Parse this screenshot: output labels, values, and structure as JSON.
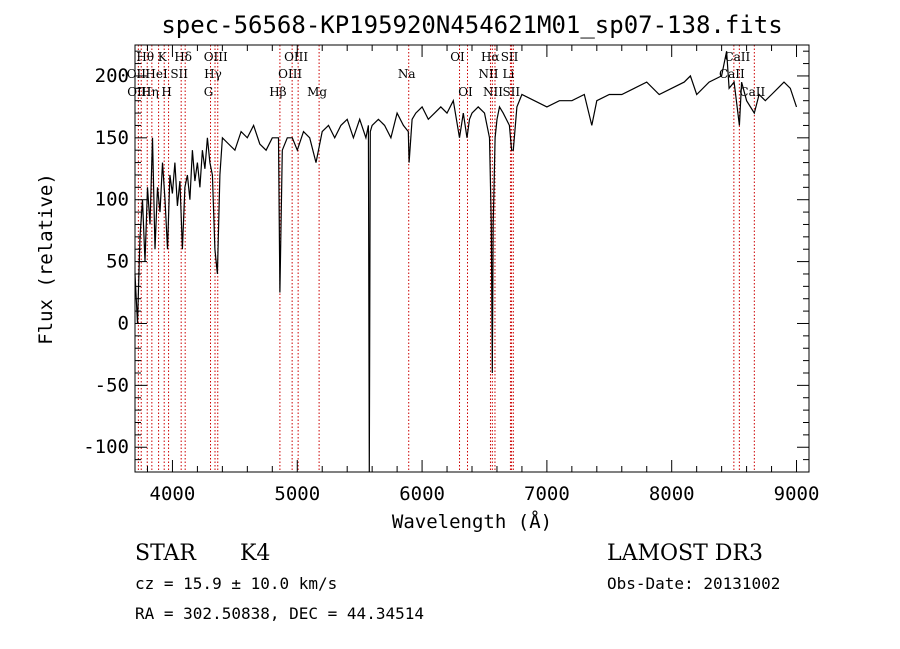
{
  "chart_data": {
    "type": "line",
    "title": "spec-56568-KP195920N454621M01_sp07-138.fits",
    "xlabel": "Wavelength (Å)",
    "ylabel": "Flux (relative)",
    "xlim": [
      3700,
      9100
    ],
    "ylim": [
      -120,
      225
    ],
    "x_ticks": [
      4000,
      5000,
      6000,
      7000,
      8000,
      9000
    ],
    "y_ticks": [
      -100,
      -50,
      0,
      50,
      100,
      150,
      200
    ],
    "series": [
      {
        "name": "flux",
        "x": [
          3700,
          3720,
          3740,
          3760,
          3780,
          3800,
          3820,
          3840,
          3860,
          3880,
          3900,
          3920,
          3940,
          3960,
          3980,
          4000,
          4020,
          4040,
          4060,
          4080,
          4100,
          4120,
          4140,
          4160,
          4180,
          4200,
          4220,
          4240,
          4260,
          4280,
          4300,
          4320,
          4340,
          4360,
          4380,
          4400,
          4450,
          4500,
          4550,
          4600,
          4650,
          4700,
          4750,
          4800,
          4850,
          4861,
          4880,
          4920,
          4960,
          5000,
          5050,
          5100,
          5150,
          5200,
          5250,
          5300,
          5350,
          5400,
          5450,
          5500,
          5550,
          5570,
          5577,
          5585,
          5600,
          5650,
          5700,
          5750,
          5800,
          5850,
          5890,
          5896,
          5920,
          5950,
          6000,
          6050,
          6100,
          6150,
          6200,
          6250,
          6300,
          6330,
          6360,
          6380,
          6400,
          6450,
          6500,
          6540,
          6555,
          6563,
          6570,
          6585,
          6600,
          6620,
          6650,
          6700,
          6717,
          6731,
          6760,
          6800,
          6900,
          7000,
          7100,
          7200,
          7300,
          7360,
          7400,
          7500,
          7600,
          7700,
          7800,
          7900,
          8000,
          8100,
          8150,
          8200,
          8300,
          8400,
          8440,
          8460,
          8500,
          8542,
          8560,
          8600,
          8662,
          8700,
          8750,
          8800,
          8850,
          8900,
          8950,
          9000
        ],
        "y": [
          40,
          0,
          70,
          100,
          50,
          110,
          80,
          150,
          60,
          110,
          90,
          130,
          100,
          60,
          120,
          105,
          130,
          95,
          115,
          60,
          110,
          120,
          100,
          140,
          115,
          130,
          110,
          140,
          125,
          150,
          130,
          120,
          60,
          40,
          120,
          150,
          145,
          140,
          155,
          150,
          160,
          145,
          140,
          150,
          150,
          25,
          140,
          150,
          150,
          140,
          155,
          150,
          130,
          155,
          160,
          150,
          160,
          165,
          150,
          165,
          150,
          160,
          -120,
          155,
          160,
          165,
          160,
          150,
          170,
          160,
          155,
          130,
          165,
          170,
          175,
          165,
          170,
          175,
          170,
          180,
          150,
          170,
          150,
          165,
          170,
          175,
          170,
          150,
          80,
          -40,
          80,
          150,
          165,
          175,
          170,
          160,
          140,
          140,
          175,
          185,
          180,
          175,
          180,
          180,
          185,
          160,
          180,
          185,
          185,
          190,
          195,
          185,
          190,
          195,
          200,
          185,
          195,
          200,
          220,
          190,
          195,
          160,
          195,
          180,
          170,
          185,
          180,
          185,
          190,
          195,
          190,
          175
        ]
      }
    ],
    "line_labels": [
      {
        "text": "Hθ",
        "wavelength": 3798,
        "row": 1
      },
      {
        "text": "OII",
        "wavelength": 3727,
        "row": 2
      },
      {
        "text": "OIII",
        "wavelength": 3750,
        "row": 3
      },
      {
        "text": "K",
        "wavelength": 3934,
        "row": 1
      },
      {
        "text": "HeI",
        "wavelength": 3889,
        "row": 2
      },
      {
        "text": "Hη",
        "wavelength": 3835,
        "row": 3
      },
      {
        "text": "Hδ",
        "wavelength": 4102,
        "row": 1
      },
      {
        "text": "SII",
        "wavelength": 4070,
        "row": 2
      },
      {
        "text": "H",
        "wavelength": 3969,
        "row": 3
      },
      {
        "text": "OIII",
        "wavelength": 4363,
        "row": 1
      },
      {
        "text": "Hγ",
        "wavelength": 4341,
        "row": 2
      },
      {
        "text": "G",
        "wavelength": 4305,
        "row": 3
      },
      {
        "text": "OIII",
        "wavelength": 5007,
        "row": 1
      },
      {
        "text": "OIII",
        "wavelength": 4959,
        "row": 2
      },
      {
        "text": "Hβ",
        "wavelength": 4861,
        "row": 3
      },
      {
        "text": "Mg",
        "wavelength": 5175,
        "row": 3
      },
      {
        "text": "Na",
        "wavelength": 5893,
        "row": 2
      },
      {
        "text": "OI",
        "wavelength": 6300,
        "row": 1
      },
      {
        "text": "OI",
        "wavelength": 6364,
        "row": 3
      },
      {
        "text": "Hα",
        "wavelength": 6563,
        "row": 1
      },
      {
        "text": "SII",
        "wavelength": 6717,
        "row": 1
      },
      {
        "text": "NII",
        "wavelength": 6548,
        "row": 2
      },
      {
        "text": "Li",
        "wavelength": 6708,
        "row": 2
      },
      {
        "text": "NII",
        "wavelength": 6584,
        "row": 3
      },
      {
        "text": "SII",
        "wavelength": 6731,
        "row": 3
      },
      {
        "text": "CaII",
        "wavelength": 8542,
        "row": 1
      },
      {
        "text": "CaII",
        "wavelength": 8498,
        "row": 2
      },
      {
        "text": "CaII",
        "wavelength": 8662,
        "row": 3
      }
    ],
    "line_marker_color": "#cc0000"
  },
  "info": {
    "object_class": "STAR",
    "subclass": "K4",
    "survey": "LAMOST DR3",
    "redshift": "cz = 15.9 ± 10.0 km/s",
    "obs_date": "Obs-Date: 20131002",
    "coords": "RA = 302.50838, DEC =  44.34514"
  }
}
